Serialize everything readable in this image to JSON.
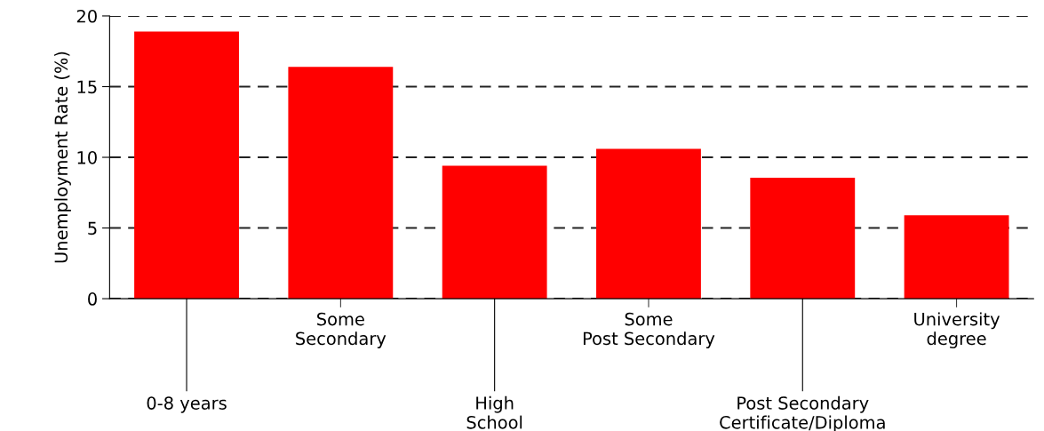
{
  "chart_data": {
    "type": "bar",
    "ylabel": "Unemployment Rate (%)",
    "categories": [
      "0-8 years",
      "Some\nSecondary",
      "High\nSchool",
      "Some\nPost Secondary",
      "Post Secondary\nCertificate/Diploma",
      "University\ndegree"
    ],
    "values": [
      18.9,
      16.4,
      9.4,
      10.6,
      8.55,
      5.9
    ],
    "color": "#ff0000",
    "ylim": [
      0,
      20
    ],
    "yticks": [
      0,
      5,
      10,
      15,
      20
    ],
    "grid": "y"
  }
}
